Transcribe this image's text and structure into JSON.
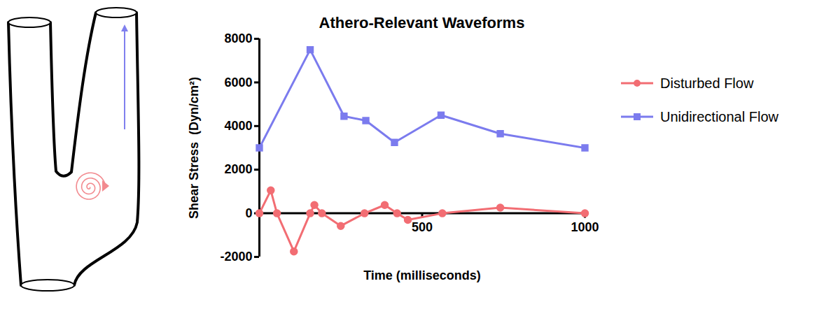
{
  "chart_data": {
    "type": "line",
    "title": "Athero-Relevant Waveforms",
    "x_label": "Time (milliseconds)",
    "y_label": "Shear Stress  (Dyn/cm²)",
    "xlim": [
      0,
      1000
    ],
    "xticks": [
      500,
      1000
    ],
    "ylim": [
      -2000,
      8000
    ],
    "yticks": [
      -2000,
      0,
      2000,
      4000,
      6000,
      8000
    ],
    "legend": "right",
    "series": [
      {
        "name": "Disturbed Flow",
        "color": "#f26d73",
        "marker": "circle",
        "x": [
          0,
          35,
          54,
          106,
          156,
          169,
          192,
          250,
          323,
          385,
          423,
          456,
          562,
          740,
          1000
        ],
        "values": [
          0,
          1050,
          0,
          -1750,
          0,
          380,
          0,
          -580,
          0,
          380,
          0,
          -300,
          0,
          260,
          0
        ]
      },
      {
        "name": "Unidirectional Flow",
        "color": "#7b7bee",
        "marker": "square",
        "x": [
          0,
          156,
          260,
          327,
          415,
          558,
          740,
          1000
        ],
        "values": [
          3000,
          7500,
          4450,
          4250,
          3250,
          4500,
          3650,
          3000
        ]
      }
    ]
  }
}
